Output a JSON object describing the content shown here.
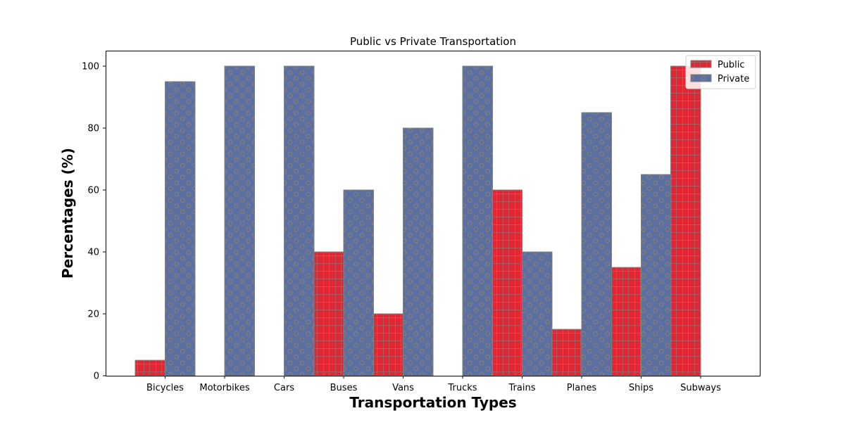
{
  "chart_data": {
    "type": "bar",
    "title": "Public vs Private Transportation",
    "xlabel": "Transportation Types",
    "ylabel": "Percentages (%)",
    "categories": [
      "Bicycles",
      "Motorbikes",
      "Cars",
      "Buses",
      "Vans",
      "Trucks",
      "Trains",
      "Planes",
      "Ships",
      "Subways"
    ],
    "series": [
      {
        "name": "Public",
        "values": [
          5,
          0,
          0,
          40,
          20,
          0,
          60,
          15,
          35,
          100
        ],
        "color": "#e02733",
        "pattern": "grid"
      },
      {
        "name": "Private",
        "values": [
          95,
          100,
          100,
          60,
          80,
          100,
          40,
          85,
          65,
          0
        ],
        "color": "#5b6fa0",
        "pattern": "circles"
      }
    ],
    "ylim": [
      0,
      105
    ],
    "yticks": [
      0,
      20,
      40,
      60,
      80,
      100
    ],
    "grid": false,
    "legend": "top-right",
    "edge_color": "#808080"
  }
}
